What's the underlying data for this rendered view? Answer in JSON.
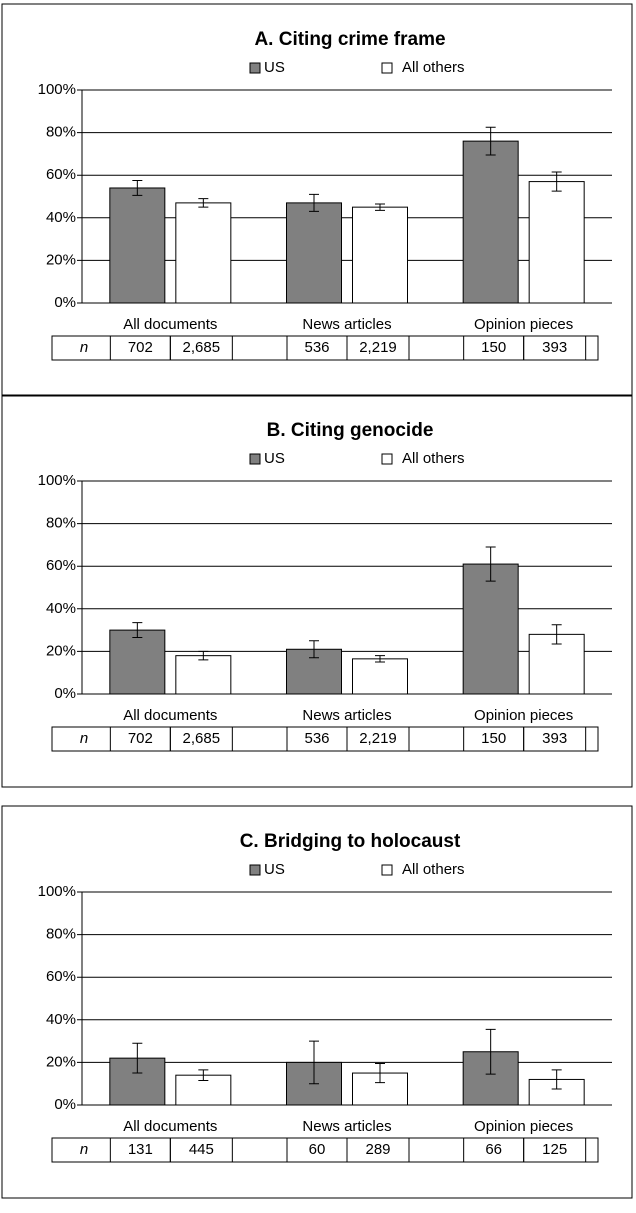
{
  "chart_data": [
    {
      "type": "bar",
      "title": "A. Citing crime frame",
      "categories": [
        "All documents",
        "News articles",
        "Opinion pieces"
      ],
      "series": [
        {
          "name": "US",
          "color": "#808080",
          "values": [
            54,
            47,
            76
          ],
          "errors": [
            3.5,
            4,
            6.5
          ],
          "n": [
            "702",
            "536",
            "150"
          ]
        },
        {
          "name": "All others",
          "color": "#ffffff",
          "values": [
            47,
            45,
            57
          ],
          "errors": [
            2,
            1.5,
            4.5
          ],
          "n": [
            "2,685",
            "2,219",
            "393"
          ]
        }
      ],
      "table_label": "n",
      "ylim": [
        0,
        100
      ],
      "yticks": [
        {
          "value": 0,
          "label": "0%"
        },
        {
          "value": 20,
          "label": "20%"
        },
        {
          "value": 40,
          "label": "40%"
        },
        {
          "value": 60,
          "label": "60%"
        },
        {
          "value": 80,
          "label": "80%"
        },
        {
          "value": 100,
          "label": "100%"
        }
      ],
      "grid": true
    },
    {
      "type": "bar",
      "title": "B. Citing genocide",
      "categories": [
        "All documents",
        "News articles",
        "Opinion pieces"
      ],
      "series": [
        {
          "name": "US",
          "color": "#808080",
          "values": [
            30,
            21,
            61
          ],
          "errors": [
            3.5,
            4,
            8
          ],
          "n": [
            "702",
            "536",
            "150"
          ]
        },
        {
          "name": "All others",
          "color": "#ffffff",
          "values": [
            18,
            16.5,
            28
          ],
          "errors": [
            2,
            1.5,
            4.5
          ],
          "n": [
            "2,685",
            "2,219",
            "393"
          ]
        }
      ],
      "table_label": "n",
      "ylim": [
        0,
        100
      ],
      "yticks": [
        {
          "value": 0,
          "label": "0%"
        },
        {
          "value": 20,
          "label": "20%"
        },
        {
          "value": 40,
          "label": "40%"
        },
        {
          "value": 60,
          "label": "60%"
        },
        {
          "value": 80,
          "label": "80%"
        },
        {
          "value": 100,
          "label": "100%"
        }
      ],
      "grid": true
    },
    {
      "type": "bar",
      "title": "C. Bridging to holocaust",
      "categories": [
        "All documents",
        "News articles",
        "Opinion pieces"
      ],
      "series": [
        {
          "name": "US",
          "color": "#808080",
          "values": [
            22,
            20,
            25
          ],
          "errors": [
            7,
            10,
            10.5
          ],
          "n": [
            "131",
            "60",
            "66"
          ]
        },
        {
          "name": "All others",
          "color": "#ffffff",
          "values": [
            14,
            15,
            12
          ],
          "errors": [
            2.5,
            4.5,
            4.5
          ],
          "n": [
            "445",
            "289",
            "125"
          ]
        }
      ],
      "table_label": "n",
      "ylim": [
        0,
        100
      ],
      "yticks": [
        {
          "value": 0,
          "label": "0%"
        },
        {
          "value": 20,
          "label": "20%"
        },
        {
          "value": 40,
          "label": "40%"
        },
        {
          "value": 60,
          "label": "60%"
        },
        {
          "value": 80,
          "label": "80%"
        },
        {
          "value": 100,
          "label": "100%"
        }
      ],
      "grid": true
    }
  ]
}
